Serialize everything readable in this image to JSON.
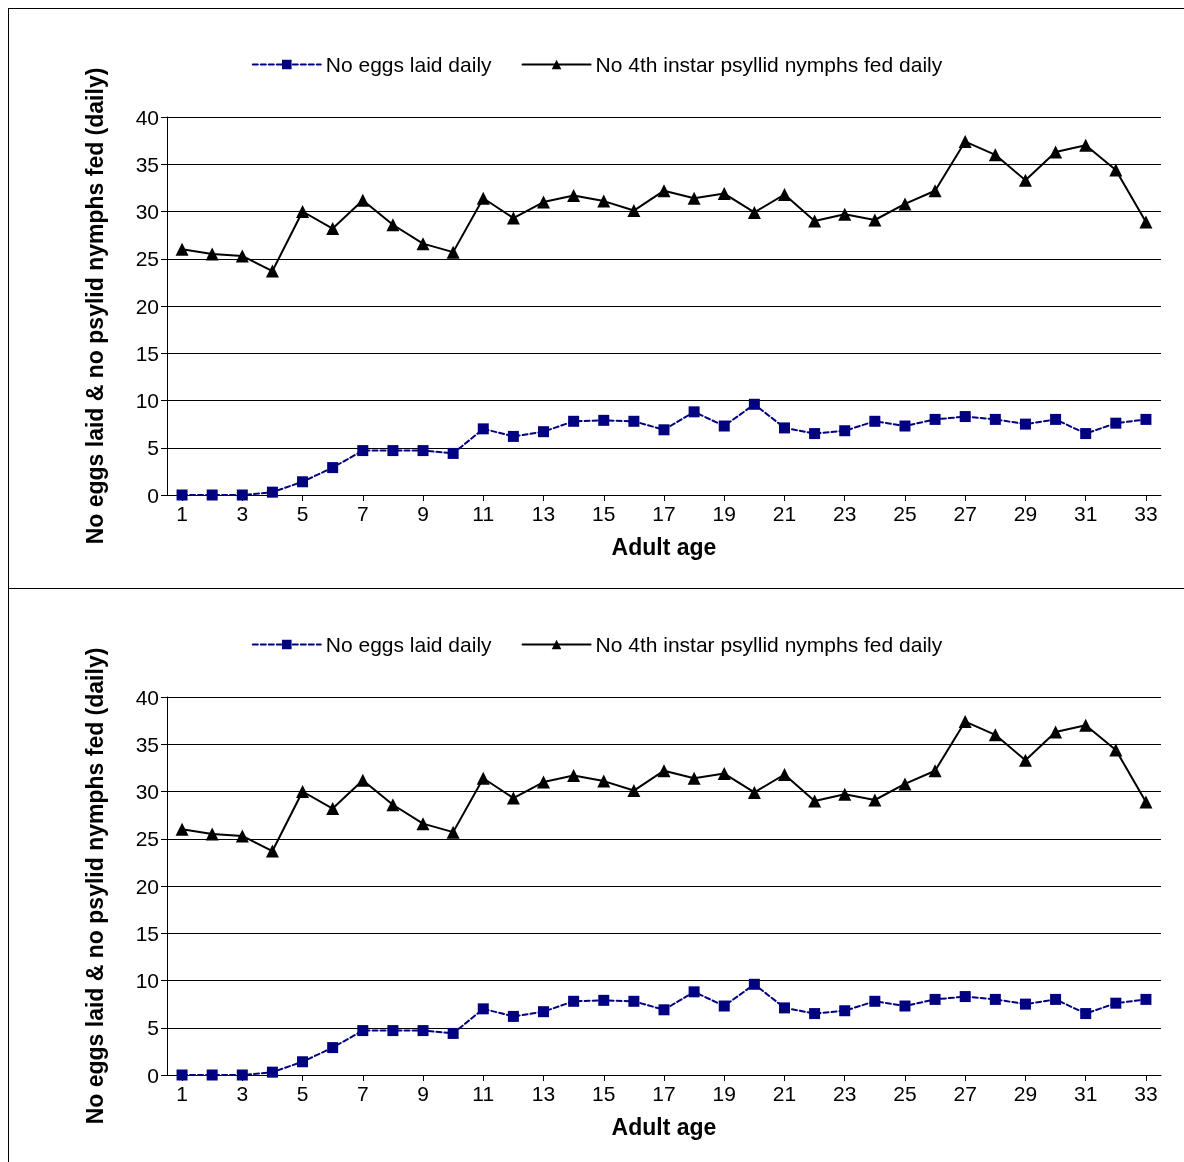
{
  "chart_data": [
    {
      "type": "line",
      "xlabel": "Adult age",
      "ylabel": "No eggs laid & no psylid nymphs fed (daily)",
      "x": [
        1,
        2,
        3,
        4,
        5,
        6,
        7,
        8,
        9,
        10,
        11,
        12,
        13,
        14,
        15,
        16,
        17,
        18,
        19,
        20,
        21,
        22,
        23,
        24,
        25,
        26,
        27,
        28,
        29,
        30,
        31,
        32,
        33
      ],
      "xlim": [
        0.5,
        33.5
      ],
      "xticks": [
        1,
        3,
        5,
        7,
        9,
        11,
        13,
        15,
        17,
        19,
        21,
        23,
        25,
        27,
        29,
        31,
        33
      ],
      "ylim": [
        0,
        40
      ],
      "yticks": [
        0,
        5,
        10,
        15,
        20,
        25,
        30,
        35,
        40
      ],
      "grid": "y",
      "legend": "top",
      "series": [
        {
          "name": "No eggs laid daily",
          "color": "#000080",
          "marker": "square",
          "line_style": "dashed",
          "values": [
            0,
            0,
            0,
            0.3,
            1.4,
            2.9,
            4.7,
            4.7,
            4.7,
            4.4,
            7.0,
            6.2,
            6.7,
            7.8,
            7.9,
            7.8,
            6.9,
            8.8,
            7.3,
            9.6,
            7.1,
            6.5,
            6.8,
            7.8,
            7.3,
            8.0,
            8.3,
            8.0,
            7.5,
            8.0,
            6.5,
            7.6,
            8.0
          ]
        },
        {
          "name": "No 4th instar psyllid nymphs fed daily",
          "color": "#000000",
          "marker": "triangle",
          "line_style": "solid",
          "values": [
            26.0,
            25.5,
            25.3,
            23.7,
            30.0,
            28.2,
            31.2,
            28.6,
            26.6,
            25.7,
            31.4,
            29.3,
            31.0,
            31.7,
            31.1,
            30.1,
            32.2,
            31.4,
            31.9,
            29.9,
            31.8,
            29.0,
            29.7,
            29.1,
            30.8,
            32.2,
            37.4,
            36.0,
            33.3,
            36.3,
            37.0,
            34.4,
            28.9
          ]
        }
      ]
    },
    {
      "type": "line",
      "xlabel": "Adult age",
      "ylabel": "No eggs laid & no psylid nymphs fed (daily)",
      "x": [
        1,
        2,
        3,
        4,
        5,
        6,
        7,
        8,
        9,
        10,
        11,
        12,
        13,
        14,
        15,
        16,
        17,
        18,
        19,
        20,
        21,
        22,
        23,
        24,
        25,
        26,
        27,
        28,
        29,
        30,
        31,
        32,
        33
      ],
      "xlim": [
        0.5,
        33.5
      ],
      "xticks": [
        1,
        3,
        5,
        7,
        9,
        11,
        13,
        15,
        17,
        19,
        21,
        23,
        25,
        27,
        29,
        31,
        33
      ],
      "ylim": [
        0,
        40
      ],
      "yticks": [
        0,
        5,
        10,
        15,
        20,
        25,
        30,
        35,
        40
      ],
      "grid": "y",
      "legend": "top",
      "series": [
        {
          "name": "No eggs laid daily",
          "color": "#000080",
          "marker": "square",
          "line_style": "dashed",
          "values": [
            0,
            0,
            0,
            0.3,
            1.4,
            2.9,
            4.7,
            4.7,
            4.7,
            4.4,
            7.0,
            6.2,
            6.7,
            7.8,
            7.9,
            7.8,
            6.9,
            8.8,
            7.3,
            9.6,
            7.1,
            6.5,
            6.8,
            7.8,
            7.3,
            8.0,
            8.3,
            8.0,
            7.5,
            8.0,
            6.5,
            7.6,
            8.0
          ]
        },
        {
          "name": "No 4th instar psyllid nymphs fed daily",
          "color": "#000000",
          "marker": "triangle",
          "line_style": "solid",
          "values": [
            26.0,
            25.5,
            25.3,
            23.7,
            30.0,
            28.2,
            31.2,
            28.6,
            26.6,
            25.7,
            31.4,
            29.3,
            31.0,
            31.7,
            31.1,
            30.1,
            32.2,
            31.4,
            31.9,
            29.9,
            31.8,
            29.0,
            29.7,
            29.1,
            30.8,
            32.2,
            37.4,
            36.0,
            33.3,
            36.3,
            37.0,
            34.4,
            28.9
          ]
        }
      ]
    }
  ]
}
